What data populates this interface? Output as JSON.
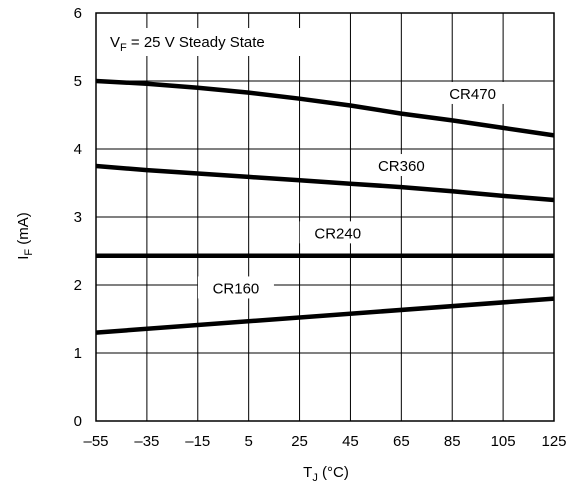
{
  "chart_data": {
    "type": "line",
    "title": "",
    "annotation": {
      "main": "V",
      "sub": "F",
      "rest": " = 25 V Steady State"
    },
    "xlabel": {
      "main": "T",
      "sub": "J",
      "rest": " (°C)"
    },
    "ylabel": {
      "main": "I",
      "sub": "F",
      "rest": " (mA)"
    },
    "xlim": [
      -55,
      125
    ],
    "ylim": [
      0,
      6
    ],
    "x_ticks": [
      -55,
      -35,
      -15,
      5,
      25,
      45,
      65,
      85,
      105,
      125
    ],
    "x_tick_labels": [
      "–55",
      "–35",
      "–15",
      "5",
      "25",
      "45",
      "65",
      "85",
      "105",
      "125"
    ],
    "y_ticks": [
      0,
      1,
      2,
      3,
      4,
      5,
      6
    ],
    "y_tick_labels": [
      "0",
      "1",
      "2",
      "3",
      "4",
      "5",
      "6"
    ],
    "grid": true,
    "series": [
      {
        "name": "CR470",
        "x": [
          -55,
          -35,
          -15,
          5,
          25,
          45,
          65,
          85,
          105,
          125
        ],
        "values": [
          5.0,
          4.96,
          4.9,
          4.83,
          4.74,
          4.64,
          4.52,
          4.42,
          4.31,
          4.2
        ]
      },
      {
        "name": "CR360",
        "x": [
          -55,
          -35,
          -15,
          5,
          25,
          45,
          65,
          85,
          105,
          125
        ],
        "values": [
          3.75,
          3.69,
          3.64,
          3.59,
          3.54,
          3.49,
          3.44,
          3.38,
          3.31,
          3.25
        ]
      },
      {
        "name": "CR240",
        "x": [
          -55,
          125
        ],
        "values": [
          2.43,
          2.43
        ]
      },
      {
        "name": "CR160",
        "x": [
          -55,
          125
        ],
        "values": [
          1.3,
          1.8
        ]
      }
    ],
    "series_label_positions": [
      {
        "name": "CR470",
        "x": 93,
        "y": 4.78
      },
      {
        "name": "CR360",
        "x": 65,
        "y": 3.72
      },
      {
        "name": "CR240",
        "x": 40,
        "y": 2.73
      },
      {
        "name": "CR160",
        "x": 0,
        "y": 1.92
      }
    ]
  }
}
